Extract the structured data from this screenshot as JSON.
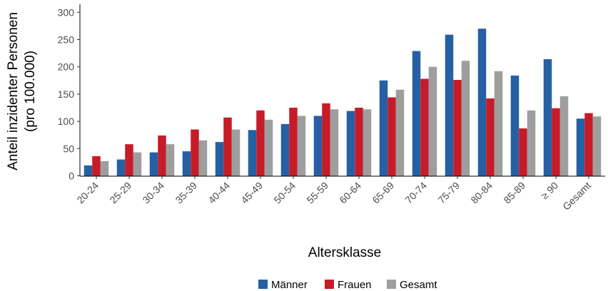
{
  "chart_data": {
    "type": "bar",
    "xlabel": "Altersklasse",
    "ylabel_lines": [
      "Anteil inzidenter Personen",
      "(pro 100.000)"
    ],
    "ylim": [
      0,
      310
    ],
    "yticks": [
      0,
      50,
      100,
      150,
      200,
      250,
      300
    ],
    "grid": false,
    "legend_position": "bottom",
    "categories": [
      "20-24",
      "25-29",
      "30-34",
      "35-39",
      "40-44",
      "45-49",
      "50-54",
      "55-59",
      "60-64",
      "65-69",
      "70-74",
      "75-79",
      "80-84",
      "85-89",
      "≥ 90",
      "Gesamt"
    ],
    "series": [
      {
        "name": "Männer",
        "color": "#2660a4",
        "values": [
          19,
          30,
          43,
          45,
          62,
          84,
          95,
          110,
          119,
          175,
          229,
          259,
          270,
          184,
          214,
          105
        ]
      },
      {
        "name": "Frauen",
        "color": "#c61b28",
        "values": [
          36,
          58,
          74,
          85,
          107,
          120,
          125,
          133,
          125,
          144,
          178,
          176,
          142,
          87,
          124,
          115
        ]
      },
      {
        "name": "Gesamt",
        "color": "#9e9e9e",
        "values": [
          27,
          43,
          58,
          65,
          85,
          103,
          110,
          122,
          122,
          158,
          200,
          211,
          192,
          120,
          146,
          109
        ]
      }
    ]
  }
}
